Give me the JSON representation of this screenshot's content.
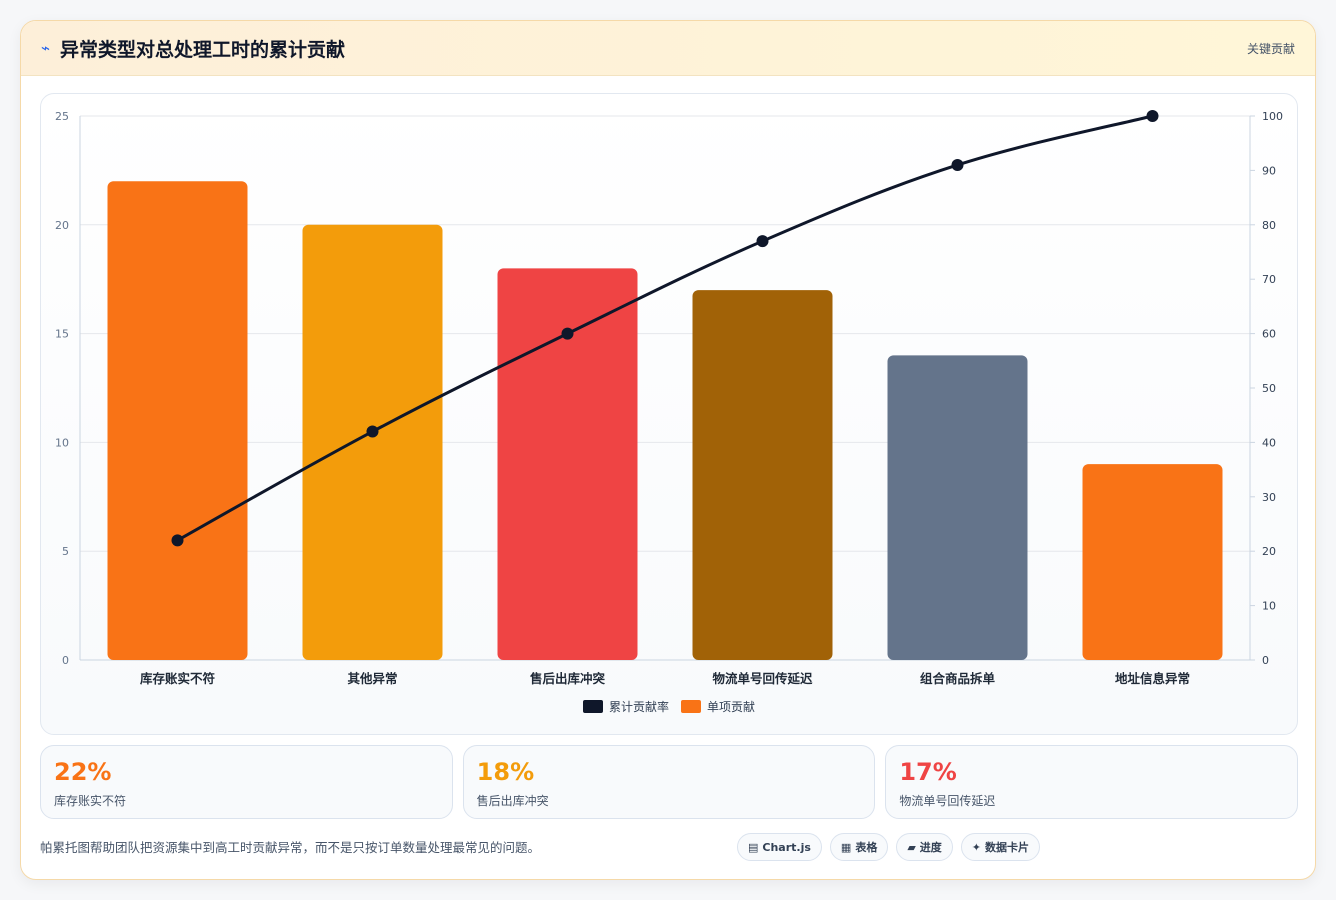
{
  "header": {
    "title": "异常类型对总处理工时的累计贡献",
    "tag": "关键贡献"
  },
  "chart_data": {
    "type": "bar",
    "categories": [
      "库存账实不符",
      "其他异常",
      "售后出库冲突",
      "物流单号回传延迟",
      "组合商品拆单",
      "地址信息异常"
    ],
    "series": [
      {
        "name": "单项贡献",
        "type": "bar",
        "axis": "left",
        "values": [
          22,
          20,
          18,
          17,
          14,
          9
        ],
        "colors": [
          "#f97316",
          "#f39c0b",
          "#ef4444",
          "#a16207",
          "#64748b",
          "#f97316"
        ]
      },
      {
        "name": "累计贡献率",
        "type": "line",
        "axis": "right",
        "values": [
          22,
          42,
          60,
          77,
          91,
          100
        ],
        "color": "#0f172a"
      }
    ],
    "y_left": {
      "min": 0,
      "max": 25,
      "ticks": [
        0,
        5,
        10,
        15,
        20,
        25
      ]
    },
    "y_right": {
      "min": 0,
      "max": 100,
      "ticks": [
        0,
        10,
        20,
        30,
        40,
        50,
        60,
        70,
        80,
        90,
        100
      ]
    },
    "grid": true,
    "legend": [
      {
        "label": "累计贡献率",
        "color": "#0f172a"
      },
      {
        "label": "单项贡献",
        "color": "#f97316"
      }
    ],
    "legend_position": "bottom"
  },
  "stats": [
    {
      "value": "22%",
      "label": "库存账实不符",
      "color": "#f97316"
    },
    {
      "value": "18%",
      "label": "售后出库冲突",
      "color": "#f39c0b"
    },
    {
      "value": "17%",
      "label": "物流单号回传延迟",
      "color": "#ef4444"
    }
  ],
  "footer": {
    "note": "帕累托图帮助团队把资源集中到高工时贡献异常，而不是只按订单数量处理最常见的问题。",
    "tags": [
      {
        "icon": "▤",
        "label": "Chart.js"
      },
      {
        "icon": "▦",
        "label": "表格"
      },
      {
        "icon": "▰",
        "label": "进度"
      },
      {
        "icon": "✦",
        "label": "数据卡片"
      }
    ]
  }
}
